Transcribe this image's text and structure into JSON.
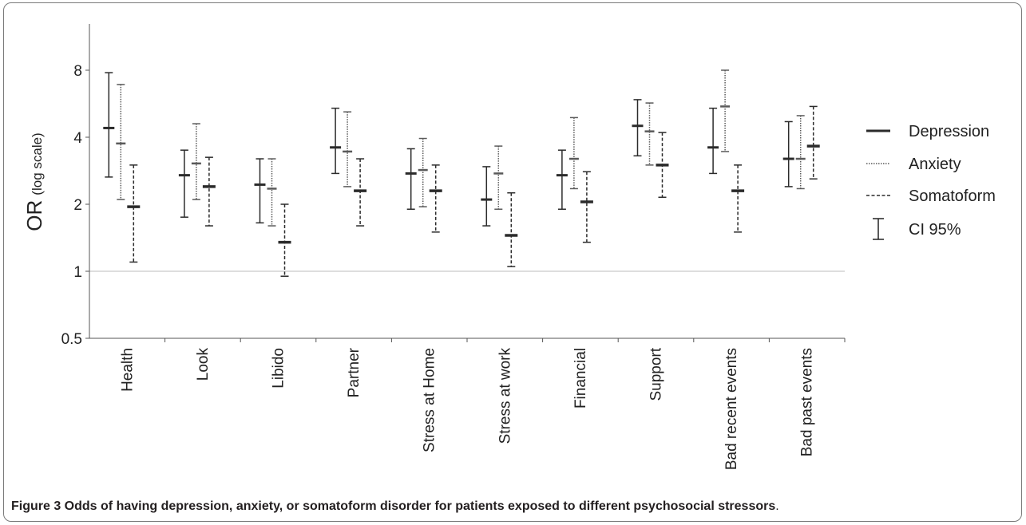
{
  "chart_data": {
    "type": "errorbar",
    "title": "",
    "xlabel": "",
    "ylabel": "OR",
    "ylabel_suffix": "(log scale)",
    "yscale": "log",
    "ylim": [
      0.5,
      11
    ],
    "yticks": [
      0.5,
      1,
      2,
      4,
      8
    ],
    "ytick_labels": [
      "0.5",
      "1",
      "2",
      "4",
      "8"
    ],
    "reference_line": 1,
    "categories": [
      "Health",
      "Look",
      "Libido",
      "Partner",
      "Stress at Home",
      "Stress at work",
      "Financial",
      "Support",
      "Bad recent events",
      "Bad past events"
    ],
    "series": [
      {
        "name": "Depression",
        "line_style": "solid",
        "values": [
          4.4,
          2.7,
          2.45,
          3.6,
          2.75,
          2.1,
          2.7,
          4.5,
          3.6,
          3.2
        ],
        "ci_low": [
          2.65,
          1.75,
          1.65,
          2.75,
          1.9,
          1.6,
          1.9,
          3.3,
          2.75,
          2.4
        ],
        "ci_high": [
          7.8,
          3.5,
          3.2,
          5.4,
          3.55,
          2.95,
          3.5,
          5.9,
          5.4,
          4.7
        ]
      },
      {
        "name": "Anxiety",
        "line_style": "dotted",
        "values": [
          3.75,
          3.05,
          2.35,
          3.45,
          2.85,
          2.75,
          3.2,
          4.25,
          5.5,
          3.2
        ],
        "ci_low": [
          2.1,
          2.1,
          1.6,
          2.4,
          1.95,
          1.9,
          2.35,
          3.0,
          3.45,
          2.35
        ],
        "ci_high": [
          6.9,
          4.6,
          3.2,
          5.2,
          3.95,
          3.65,
          4.9,
          5.7,
          8.0,
          5.0
        ]
      },
      {
        "name": "Somatoform",
        "line_style": "dashed",
        "values": [
          1.95,
          2.4,
          1.35,
          2.3,
          2.3,
          1.45,
          2.05,
          3.0,
          2.3,
          3.65
        ],
        "ci_low": [
          1.1,
          1.6,
          0.95,
          1.6,
          1.5,
          1.05,
          1.35,
          2.15,
          1.5,
          2.6
        ],
        "ci_high": [
          3.0,
          3.25,
          2.0,
          3.2,
          3.0,
          2.25,
          2.8,
          4.2,
          3.0,
          5.5
        ]
      }
    ],
    "legend": {
      "position": "right",
      "entries": [
        "Depression",
        "Anxiety",
        "Somatoform",
        "CI 95%"
      ]
    },
    "colors": {
      "Depression": "#2b2b2b",
      "Anxiety": "#5a5a5a",
      "Somatoform": "#2b2b2b",
      "reference_line": "#bdbdbd",
      "axis": "#555555"
    }
  },
  "caption": {
    "label": "Figure 3",
    "text": " Odds of having depression, anxiety, or somatoform disorder for patients exposed to different psychosocial stressors",
    "end": "."
  }
}
